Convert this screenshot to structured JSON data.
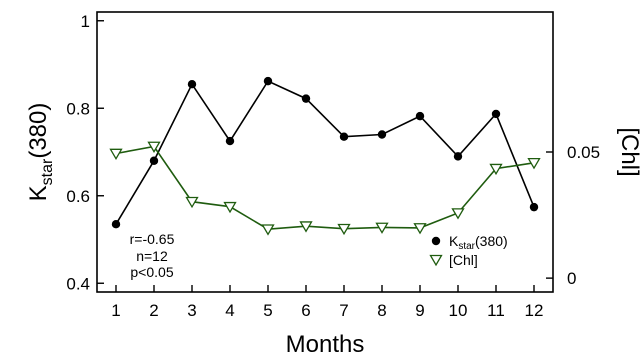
{
  "chart_data": {
    "type": "line",
    "x": [
      1,
      2,
      3,
      4,
      5,
      6,
      7,
      8,
      9,
      10,
      11,
      12
    ],
    "xlabel": "Months",
    "ylabel_main": "K",
    "ylabel_sub": "star",
    "ylabel_tail": "(380)",
    "y2label": "[Chl]",
    "xlim": [
      0.5,
      12.5
    ],
    "ylim": [
      0.38,
      1.02
    ],
    "xticks": [
      1,
      2,
      3,
      4,
      5,
      6,
      7,
      8,
      9,
      10,
      11,
      12
    ],
    "xtick_labels": [
      "1",
      "2",
      "3",
      "4",
      "5",
      "6",
      "7",
      "8",
      "9",
      "10",
      "11",
      "12"
    ],
    "yticks": [
      0.4,
      0.6,
      0.8,
      1.0
    ],
    "ytick_labels": [
      "0.4",
      "0.6",
      "0.8",
      "1"
    ],
    "y2lim": [
      -0.0055,
      0.1055
    ],
    "y2ticks": [
      0,
      0.05
    ],
    "y2tick_labels": [
      "0",
      "0.05"
    ],
    "series": [
      {
        "name": "K(star)(380)",
        "name_main": "K",
        "name_sub": "star",
        "name_tail": "(380)",
        "axis": "left",
        "color": "#000000",
        "marker": "filled-circle",
        "values": [
          0.535,
          0.68,
          0.855,
          0.725,
          0.862,
          0.822,
          0.735,
          0.74,
          0.782,
          0.69,
          0.787,
          0.574
        ]
      },
      {
        "name": "[Chl]",
        "axis": "right",
        "color": "#1f5c0f",
        "marker": "open-triangle-down",
        "values": [
          0.0494,
          0.0522,
          0.0303,
          0.0283,
          0.0194,
          0.0206,
          0.0196,
          0.0201,
          0.0199,
          0.0258,
          0.0434,
          0.0457
        ]
      }
    ],
    "annotations": [
      "r=-0.65",
      "n=12",
      "p<0.05"
    ],
    "legend_position": "bottom-right",
    "grid": false
  }
}
